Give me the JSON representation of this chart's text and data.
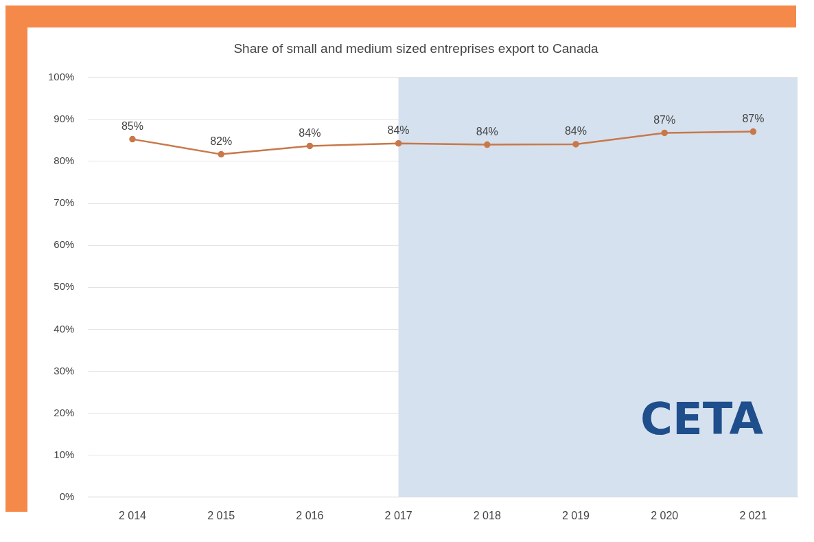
{
  "chart_data": {
    "type": "line",
    "title": "Share of small and medium sized entreprises export to Canada",
    "categories": [
      "2 014",
      "2 015",
      "2 016",
      "2 017",
      "2 018",
      "2 019",
      "2 020",
      "2 021"
    ],
    "series": [
      {
        "color": "#c8784a",
        "values": [
          85.3,
          81.7,
          83.7,
          84.3,
          84.0,
          84.1,
          86.8,
          87.1
        ],
        "value_labels": [
          "85%",
          "82%",
          "84%",
          "84%",
          "84%",
          "84%",
          "87%",
          "87%"
        ]
      }
    ],
    "ylim": [
      0,
      100
    ],
    "yticks": [
      {
        "value": 0,
        "label": "0%"
      },
      {
        "value": 10,
        "label": "10%"
      },
      {
        "value": 20,
        "label": "20%"
      },
      {
        "value": 30,
        "label": "30%"
      },
      {
        "value": 40,
        "label": "40%"
      },
      {
        "value": 50,
        "label": "50%"
      },
      {
        "value": 60,
        "label": "60%"
      },
      {
        "value": 70,
        "label": "70%"
      },
      {
        "value": 80,
        "label": "80%"
      },
      {
        "value": 90,
        "label": "90%"
      },
      {
        "value": 100,
        "label": "100%"
      }
    ],
    "bands": [
      {
        "axis": "x",
        "from": "2 017",
        "to": "2 021",
        "label": "CETA",
        "color": "#d5e1ee"
      }
    ],
    "grid": "y",
    "marker": "circle",
    "line_style": "solid",
    "legend": false
  }
}
